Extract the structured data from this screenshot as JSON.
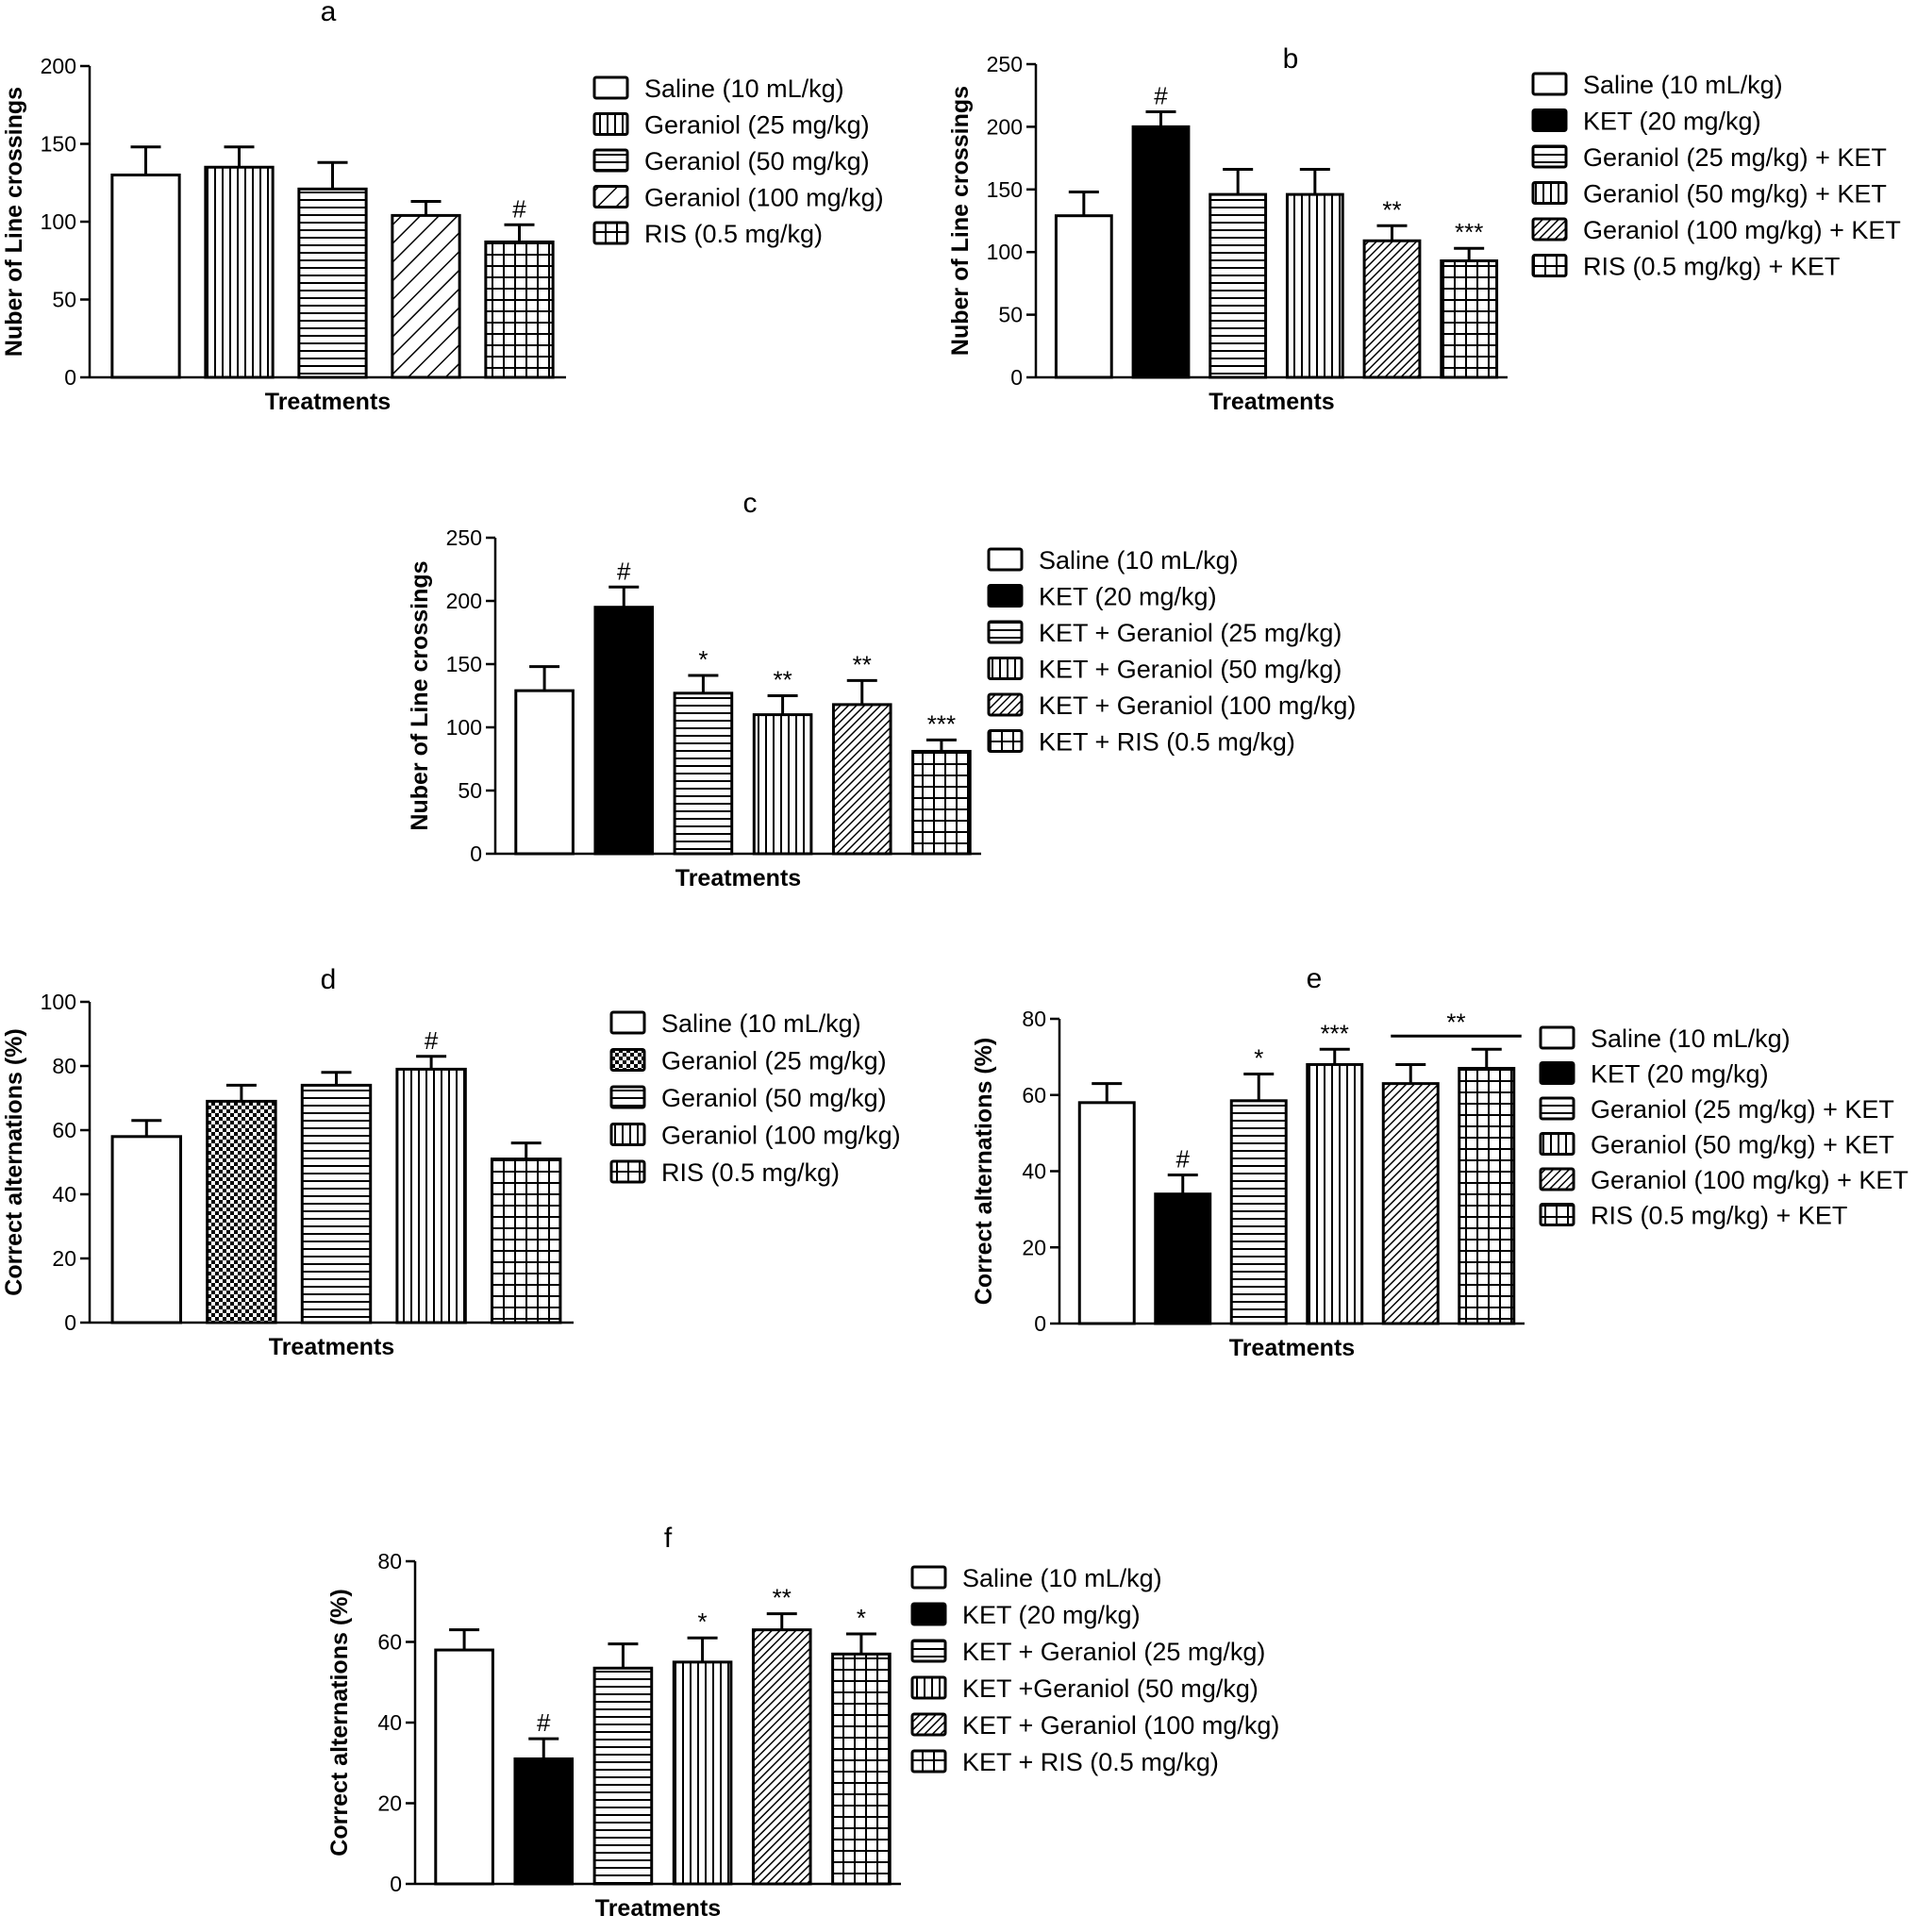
{
  "chart_data": [
    {
      "panel": "a",
      "type": "bar",
      "xlabel": "Treatments",
      "ylabel": "Nuber of Line crossings",
      "ylim": [
        0,
        200
      ],
      "yticks": [
        0,
        50,
        100,
        150,
        200
      ],
      "categories": [
        "Saline (10 mL/kg)",
        "Geraniol (25 mg/kg)",
        "Geraniol (50 mg/kg)",
        "Geraniol (100 mg/kg)",
        "RIS (0.5 mg/kg)"
      ],
      "patterns": [
        "white",
        "vertical",
        "horizontal",
        "diagonal-wide",
        "grid"
      ],
      "values": [
        130,
        135,
        121,
        104,
        87
      ],
      "errors": [
        18,
        13,
        17,
        9,
        11
      ],
      "significance": [
        "",
        "",
        "",
        "",
        "#"
      ],
      "grid": false,
      "legend_position": "right"
    },
    {
      "panel": "b",
      "type": "bar",
      "xlabel": "Treatments",
      "ylabel": "Nuber of Line crossings",
      "ylim": [
        0,
        250
      ],
      "yticks": [
        0,
        50,
        100,
        150,
        200,
        250
      ],
      "categories": [
        "Saline (10 mL/kg)",
        "KET (20 mg/kg)",
        "Geraniol (25 mg/kg) + KET",
        "Geraniol (50 mg/kg) + KET",
        "Geraniol (100 mg/kg) + KET",
        "RIS (0.5 mg/kg) + KET"
      ],
      "patterns": [
        "white",
        "black",
        "horizontal",
        "vertical",
        "diagonal",
        "grid"
      ],
      "values": [
        129,
        200,
        146,
        146,
        109,
        93
      ],
      "errors": [
        19,
        12,
        20,
        20,
        12,
        10
      ],
      "significance": [
        "",
        "#",
        "",
        "",
        "**",
        "***"
      ],
      "grid": false,
      "legend_position": "right"
    },
    {
      "panel": "c",
      "type": "bar",
      "xlabel": "Treatments",
      "ylabel": "Nuber of Line crossings",
      "ylim": [
        0,
        250
      ],
      "yticks": [
        0,
        50,
        100,
        150,
        200,
        250
      ],
      "categories": [
        "Saline (10 mL/kg)",
        "KET (20 mg/kg)",
        "KET + Geraniol (25 mg/kg)",
        "KET + Geraniol (50 mg/kg)",
        "KET + Geraniol (100 mg/kg)",
        "KET + RIS (0.5 mg/kg)"
      ],
      "patterns": [
        "white",
        "black",
        "horizontal",
        "vertical",
        "diagonal",
        "grid"
      ],
      "values": [
        129,
        195,
        127,
        110,
        118,
        81
      ],
      "errors": [
        19,
        16,
        14,
        15,
        19,
        9
      ],
      "significance": [
        "",
        "#",
        "*",
        "**",
        "**",
        "***"
      ],
      "grid": false,
      "legend_position": "right"
    },
    {
      "panel": "d",
      "type": "bar",
      "xlabel": "Treatments",
      "ylabel": "Correct alternations (%)",
      "ylim": [
        0,
        100
      ],
      "yticks": [
        0,
        20,
        40,
        60,
        80,
        100
      ],
      "categories": [
        "Saline (10 mL/kg)",
        "Geraniol (25 mg/kg)",
        "Geraniol (50 mg/kg)",
        "Geraniol (100 mg/kg)",
        "RIS (0.5 mg/kg)"
      ],
      "patterns": [
        "white",
        "checker",
        "horizontal",
        "vertical",
        "grid"
      ],
      "values": [
        58,
        69,
        74,
        79,
        51
      ],
      "errors": [
        5,
        5,
        4,
        4,
        5
      ],
      "significance": [
        "",
        "",
        "",
        "#",
        ""
      ],
      "grid": false,
      "legend_position": "right"
    },
    {
      "panel": "e",
      "type": "bar",
      "xlabel": "Treatments",
      "ylabel": "Correct alternations (%)",
      "ylim": [
        0,
        80
      ],
      "yticks": [
        0,
        20,
        40,
        60,
        80
      ],
      "categories": [
        "Saline (10 mL/kg)",
        "KET (20 mg/kg)",
        "Geraniol (25 mg/kg) + KET",
        "Geraniol (50 mg/kg) + KET",
        "Geraniol (100 mg/kg) + KET",
        "RIS (0.5 mg/kg) + KET"
      ],
      "patterns": [
        "white",
        "black",
        "horizontal",
        "vertical",
        "diagonal",
        "grid"
      ],
      "values": [
        58,
        34,
        58.5,
        68,
        63,
        67
      ],
      "errors": [
        5,
        5,
        7,
        4,
        5,
        5
      ],
      "significance": [
        "",
        "#",
        "*",
        "***",
        "",
        ""
      ],
      "bracket": {
        "from": 4,
        "to": 5,
        "label": "**"
      },
      "grid": false,
      "legend_position": "right"
    },
    {
      "panel": "f",
      "type": "bar",
      "xlabel": "Treatments",
      "ylabel": "Correct alternations (%)",
      "ylim": [
        0,
        80
      ],
      "yticks": [
        0,
        20,
        40,
        60,
        80
      ],
      "categories": [
        "Saline (10 mL/kg)",
        "KET (20 mg/kg)",
        "KET + Geraniol (25 mg/kg)",
        "KET +Geraniol (50 mg/kg)",
        "KET + Geraniol (100 mg/kg)",
        "KET + RIS (0.5 mg/kg)"
      ],
      "patterns": [
        "white",
        "black",
        "horizontal",
        "vertical",
        "diagonal",
        "grid"
      ],
      "values": [
        58,
        31,
        53.5,
        55,
        63,
        57
      ],
      "errors": [
        5,
        5,
        6,
        6,
        4,
        5
      ],
      "significance": [
        "",
        "#",
        "",
        "*",
        "**",
        "*"
      ],
      "grid": false,
      "legend_position": "right"
    }
  ]
}
